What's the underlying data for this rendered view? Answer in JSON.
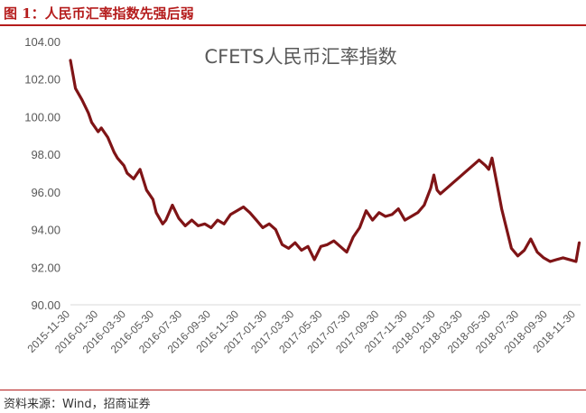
{
  "figure": {
    "caption": "图 1：人民币汇率指数先强后弱",
    "source": "资料来源：Wind，招商证券"
  },
  "chart_data": {
    "type": "line",
    "title": "CFETS人民币汇率指数",
    "xlabel": "",
    "ylabel": "",
    "ylim": [
      90,
      104
    ],
    "yticks": [
      "104.00",
      "102.00",
      "100.00",
      "98.00",
      "96.00",
      "94.00",
      "92.00",
      "90.00"
    ],
    "xlim": [
      "2015-11-30",
      "2018-12-10"
    ],
    "xticks": [
      "2015-11-30",
      "2016-01-30",
      "2016-03-30",
      "2016-05-30",
      "2016-07-30",
      "2016-09-30",
      "2016-11-30",
      "2017-01-30",
      "2017-03-30",
      "2017-05-30",
      "2017-07-30",
      "2017-09-30",
      "2017-11-30",
      "2018-01-30",
      "2018-03-30",
      "2018-05-30",
      "2018-07-30",
      "2018-09-30",
      "2018-11-30"
    ],
    "grid": false,
    "line_color": "#7f1416",
    "series": [
      {
        "x": [
          "2015-11-30",
          "2015-12-11",
          "2015-12-25",
          "2016-01-08",
          "2016-01-15",
          "2016-01-29",
          "2016-02-05",
          "2016-02-19",
          "2016-03-04",
          "2016-03-11",
          "2016-03-25",
          "2016-04-01",
          "2016-04-15",
          "2016-04-29",
          "2016-05-13",
          "2016-05-27",
          "2016-06-03",
          "2016-06-17",
          "2016-06-24",
          "2016-07-08",
          "2016-07-22",
          "2016-08-05",
          "2016-08-19",
          "2016-09-02",
          "2016-09-16",
          "2016-09-30",
          "2016-10-14",
          "2016-10-28",
          "2016-11-11",
          "2016-11-25",
          "2016-12-09",
          "2016-12-23",
          "2017-01-06",
          "2017-01-20",
          "2017-02-03",
          "2017-02-17",
          "2017-03-03",
          "2017-03-17",
          "2017-03-31",
          "2017-04-14",
          "2017-04-28",
          "2017-05-12",
          "2017-05-26",
          "2017-06-09",
          "2017-06-23",
          "2017-07-07",
          "2017-07-21",
          "2017-08-04",
          "2017-08-18",
          "2017-09-01",
          "2017-09-15",
          "2017-09-29",
          "2017-10-13",
          "2017-10-27",
          "2017-11-10",
          "2017-11-24",
          "2017-12-08",
          "2017-12-22",
          "2018-01-05",
          "2018-01-19",
          "2018-01-26",
          "2018-02-02",
          "2018-02-09",
          "2018-02-23",
          "2018-03-09",
          "2018-03-23",
          "2018-04-06",
          "2018-04-20",
          "2018-05-04",
          "2018-05-18",
          "2018-05-25",
          "2018-06-01",
          "2018-06-15",
          "2018-06-22",
          "2018-06-29",
          "2018-07-13",
          "2018-07-27",
          "2018-08-10",
          "2018-08-24",
          "2018-09-07",
          "2018-09-21",
          "2018-10-05",
          "2018-10-19",
          "2018-11-02",
          "2018-11-16",
          "2018-11-30",
          "2018-12-07"
        ],
        "y": [
          103.0,
          101.5,
          100.9,
          100.2,
          99.7,
          99.2,
          99.4,
          98.9,
          98.1,
          97.8,
          97.4,
          97.0,
          96.7,
          97.2,
          96.1,
          95.6,
          94.9,
          94.3,
          94.5,
          95.3,
          94.6,
          94.2,
          94.5,
          94.2,
          94.3,
          94.1,
          94.5,
          94.3,
          94.8,
          95.0,
          95.2,
          94.9,
          94.5,
          94.1,
          94.3,
          94.0,
          93.2,
          93.0,
          93.3,
          92.9,
          93.1,
          92.4,
          93.1,
          93.2,
          93.4,
          93.1,
          92.8,
          93.6,
          94.1,
          95.0,
          94.5,
          94.9,
          94.7,
          94.8,
          95.1,
          94.5,
          94.7,
          94.9,
          95.3,
          96.2,
          96.9,
          96.1,
          95.9,
          96.2,
          96.5,
          96.8,
          97.1,
          97.4,
          97.7,
          97.4,
          97.2,
          97.8,
          96.0,
          95.1,
          94.4,
          93.0,
          92.6,
          92.9,
          93.5,
          92.8,
          92.5,
          92.3,
          92.4,
          92.5,
          92.4,
          92.3,
          93.3
        ]
      }
    ]
  }
}
